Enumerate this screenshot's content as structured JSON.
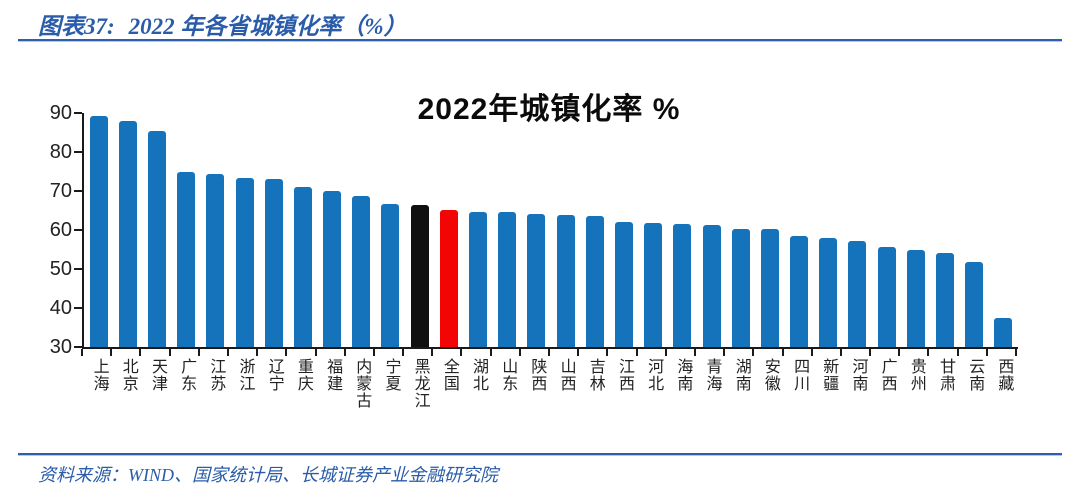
{
  "header": {
    "figure_label": "图表37:",
    "figure_title": "2022 年各省城镇化率（%）",
    "text_color": "#2A5CAA",
    "rule_color": "#2E5FAE"
  },
  "footer": {
    "source_text": "资料来源：WIND、国家统计局、长城证券产业金融研究院"
  },
  "chart_data": {
    "type": "bar",
    "title": "2022年城镇化率 %",
    "categories": [
      "上海",
      "北京",
      "天津",
      "广东",
      "江苏",
      "浙江",
      "辽宁",
      "重庆",
      "福建",
      "内蒙古",
      "宁夏",
      "黑龙江",
      "全国",
      "湖北",
      "山东",
      "陕西",
      "山西",
      "吉林",
      "江西",
      "河北",
      "海南",
      "青海",
      "湖南",
      "安徽",
      "四川",
      "新疆",
      "河南",
      "广西",
      "贵州",
      "甘肃",
      "云南",
      "西藏"
    ],
    "values": [
      89.3,
      88.0,
      85.5,
      74.8,
      74.4,
      73.4,
      73.0,
      71.0,
      70.1,
      68.6,
      66.6,
      66.5,
      65.2,
      64.7,
      64.5,
      64.0,
      63.9,
      63.6,
      62.1,
      61.8,
      61.5,
      61.4,
      60.3,
      60.2,
      58.4,
      57.9,
      57.1,
      55.7,
      54.8,
      54.2,
      51.7,
      37.4
    ],
    "bar_color_default": "#1573BB",
    "highlight_colors": {
      "黑龙江": "#101010",
      "全国": "#F30505"
    },
    "ylim": [
      30,
      90
    ],
    "yticks": [
      30,
      40,
      50,
      60,
      70,
      80,
      90
    ],
    "xlabel": "",
    "ylabel": "",
    "grid": false,
    "legend": "none",
    "axis_color": "#1A1A1A",
    "title_color": "#0B0B0B"
  }
}
